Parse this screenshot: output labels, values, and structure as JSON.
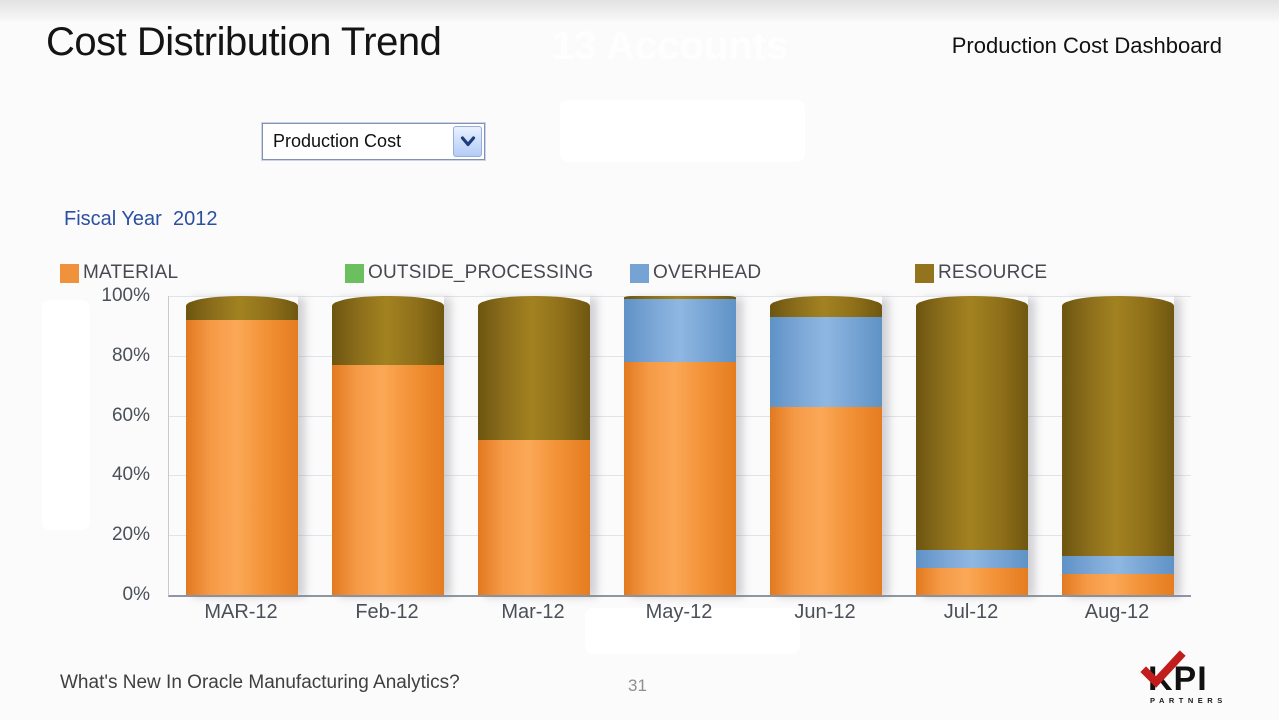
{
  "slide": {
    "title": "Cost Distribution Trend",
    "header_right": "Production Cost Dashboard",
    "ghost_text": "13 Accounts",
    "fiscal_year_label": "Fiscal Year  2012",
    "footer": {
      "text": "What's New In Oracle Manufacturing Analytics?",
      "page_number": "31"
    },
    "logo": {
      "line1": "KPI",
      "line2": "PARTNERS",
      "check_color": "#c11d1d"
    }
  },
  "controls": {
    "view_selector": {
      "value": "Production Cost"
    }
  },
  "chart_data": {
    "type": "bar",
    "stacked": true,
    "percent_stacked": true,
    "title": "Cost Distribution Trend",
    "subtitle": "Fiscal Year  2012",
    "categories": [
      "MAR-12",
      "Feb-12",
      "Mar-12",
      "May-12",
      "Jun-12",
      "Jul-12",
      "Aug-12"
    ],
    "series": [
      {
        "name": "MATERIAL",
        "color": "#F0913B",
        "values": [
          92,
          77,
          52,
          78,
          63,
          9,
          7
        ]
      },
      {
        "name": "OUTSIDE_PROCESSING",
        "color": "#6CBF5F",
        "values": [
          0,
          0,
          0,
          0,
          0,
          0,
          0
        ]
      },
      {
        "name": "OVERHEAD",
        "color": "#74A3D4",
        "values": [
          0,
          0,
          0,
          21,
          30,
          6,
          6
        ]
      },
      {
        "name": "RESOURCE",
        "color": "#94731E",
        "values": [
          8,
          23,
          48,
          1,
          7,
          85,
          87
        ]
      }
    ],
    "xlabel": "",
    "ylabel": "",
    "ylim": [
      0,
      100
    ],
    "y_ticks": [
      "100%",
      "80%",
      "60%",
      "40%",
      "20%",
      "0%"
    ],
    "grid": true,
    "legend_position": "top"
  }
}
